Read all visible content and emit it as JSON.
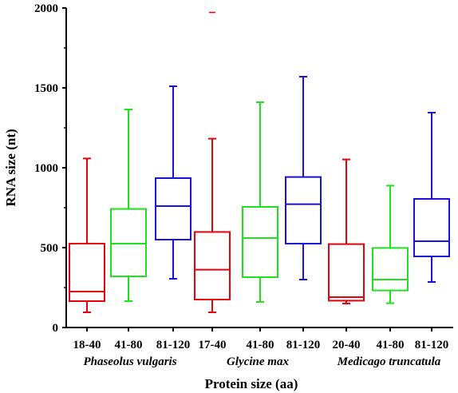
{
  "chart_data": {
    "type": "box",
    "xlabel": "Protein size (aa)",
    "ylabel": "RNA size (nt)",
    "ylim": [
      0,
      2000
    ],
    "yticks": [
      0,
      500,
      1000,
      1500,
      2000
    ],
    "groups": [
      "Phaseolus vulgaris",
      "Glycine max",
      "Medicago truncatula"
    ],
    "colors": {
      "short": "#e8000b",
      "medium": "#1fe11f",
      "long": "#1a12d9"
    },
    "boxes": [
      {
        "category": "18-40",
        "group": 0,
        "color": "short",
        "whisker_low": 95,
        "q1": 165,
        "median": 225,
        "q3": 525,
        "whisker_high": 1058
      },
      {
        "category": "41-80",
        "group": 0,
        "color": "medium",
        "whisker_low": 165,
        "q1": 320,
        "median": 525,
        "q3": 742,
        "whisker_high": 1365
      },
      {
        "category": "81-120",
        "group": 0,
        "color": "long",
        "whisker_low": 305,
        "q1": 550,
        "median": 760,
        "q3": 935,
        "whisker_high": 1510
      },
      {
        "category": "17-40",
        "group": 1,
        "color": "short",
        "whisker_low": 95,
        "q1": 175,
        "median": 362,
        "q3": 598,
        "whisker_high": 1182,
        "outliers": [
          1972
        ]
      },
      {
        "category": "41-80",
        "group": 1,
        "color": "medium",
        "whisker_low": 160,
        "q1": 315,
        "median": 560,
        "q3": 755,
        "whisker_high": 1410
      },
      {
        "category": "81-120",
        "group": 1,
        "color": "long",
        "whisker_low": 300,
        "q1": 525,
        "median": 772,
        "q3": 942,
        "whisker_high": 1570
      },
      {
        "category": "20-40",
        "group": 2,
        "color": "short",
        "whisker_low": 150,
        "q1": 168,
        "median": 190,
        "q3": 522,
        "whisker_high": 1052
      },
      {
        "category": "41-80",
        "group": 2,
        "color": "medium",
        "whisker_low": 152,
        "q1": 232,
        "median": 300,
        "q3": 498,
        "whisker_high": 888
      },
      {
        "category": "81-120",
        "group": 2,
        "color": "long",
        "whisker_low": 285,
        "q1": 445,
        "median": 540,
        "q3": 805,
        "whisker_high": 1345
      }
    ]
  }
}
